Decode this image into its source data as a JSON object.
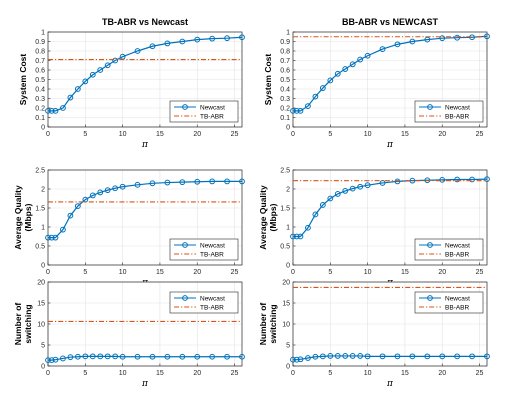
{
  "colors": {
    "newcast": "#0072bd",
    "reference": "#d95319",
    "grid": "#e3e3e3",
    "axis": "#262626"
  },
  "chart_data": [
    {
      "type": "line",
      "title": "TB-ABR vs Newcast",
      "xlabel": "π",
      "ylabel": [
        "System Cost"
      ],
      "xlim": [
        0,
        26
      ],
      "ylim": [
        0,
        1
      ],
      "xticks": [
        "0",
        "5",
        "10",
        "15",
        "20",
        "25"
      ],
      "yticks": [
        "0",
        "0.1",
        "0.2",
        "0.3",
        "0.4",
        "0.5",
        "0.6",
        "0.7",
        "0.8",
        "0.9",
        "1"
      ],
      "grid": true,
      "legend_position": "bottom-right",
      "series": [
        {
          "name": "Newcast",
          "style": "line-circle",
          "x": [
            0,
            0.5,
            1,
            2,
            3,
            4,
            5,
            6,
            7,
            8,
            9,
            10,
            12,
            14,
            16,
            18,
            20,
            22,
            24,
            26
          ],
          "y": [
            0.17,
            0.17,
            0.17,
            0.2,
            0.31,
            0.4,
            0.48,
            0.55,
            0.6,
            0.65,
            0.7,
            0.74,
            0.8,
            0.85,
            0.88,
            0.9,
            0.92,
            0.93,
            0.935,
            0.945
          ]
        },
        {
          "name": "TB-ABR",
          "style": "dash-dot",
          "x": [
            0,
            26
          ],
          "y": [
            0.71,
            0.71
          ]
        }
      ]
    },
    {
      "type": "line",
      "title": "BB-ABR vs NEWCAST",
      "xlabel": "π",
      "ylabel": [
        "System Cost"
      ],
      "xlim": [
        0,
        26
      ],
      "ylim": [
        0,
        1
      ],
      "xticks": [
        "0",
        "5",
        "10",
        "15",
        "20",
        "25"
      ],
      "yticks": [
        "0",
        "0.1",
        "0.2",
        "0.3",
        "0.4",
        "0.5",
        "0.6",
        "0.7",
        "0.8",
        "0.9",
        "1"
      ],
      "grid": true,
      "legend_position": "bottom-right",
      "series": [
        {
          "name": "Newcast",
          "style": "line-circle",
          "x": [
            0,
            0.5,
            1,
            2,
            3,
            4,
            5,
            6,
            7,
            8,
            9,
            10,
            12,
            14,
            16,
            18,
            20,
            22,
            24,
            26
          ],
          "y": [
            0.17,
            0.17,
            0.17,
            0.22,
            0.32,
            0.41,
            0.49,
            0.56,
            0.61,
            0.66,
            0.71,
            0.75,
            0.82,
            0.87,
            0.9,
            0.92,
            0.935,
            0.94,
            0.945,
            0.955
          ]
        },
        {
          "name": "BB-ABR",
          "style": "dash-dot",
          "x": [
            0,
            26
          ],
          "y": [
            0.95,
            0.95
          ]
        }
      ]
    },
    {
      "type": "line",
      "title": "",
      "xlabel": "π",
      "ylabel": [
        "Average Quality",
        "(Mbps)"
      ],
      "xlim": [
        0,
        26
      ],
      "ylim": [
        0,
        2.5
      ],
      "xticks": [
        "0",
        "5",
        "10",
        "15",
        "20",
        "25"
      ],
      "yticks": [
        "0",
        "0.5",
        "1",
        "1.5",
        "2",
        "2.5"
      ],
      "grid": true,
      "legend_position": "bottom-right",
      "series": [
        {
          "name": "Newcast",
          "style": "line-circle",
          "x": [
            0,
            0.5,
            1,
            2,
            3,
            4,
            5,
            6,
            7,
            8,
            9,
            10,
            12,
            14,
            16,
            18,
            20,
            22,
            24,
            26
          ],
          "y": [
            0.72,
            0.72,
            0.72,
            0.93,
            1.3,
            1.55,
            1.72,
            1.83,
            1.91,
            1.97,
            2.02,
            2.06,
            2.11,
            2.15,
            2.17,
            2.18,
            2.19,
            2.2,
            2.2,
            2.2
          ]
        },
        {
          "name": "TB-ABR",
          "style": "dash-dot",
          "x": [
            0,
            26
          ],
          "y": [
            1.66,
            1.66
          ]
        }
      ]
    },
    {
      "type": "line",
      "title": "",
      "xlabel": "π",
      "ylabel": [
        "Average Quality",
        "(Mbps)"
      ],
      "xlim": [
        0,
        26
      ],
      "ylim": [
        0,
        2.5
      ],
      "xticks": [
        "0",
        "5",
        "10",
        "15",
        "20",
        "25"
      ],
      "yticks": [
        "0",
        "0.5",
        "1",
        "1.5",
        "2",
        "2.5"
      ],
      "grid": true,
      "legend_position": "bottom-right",
      "series": [
        {
          "name": "Newcast",
          "style": "line-circle",
          "x": [
            0,
            0.5,
            1,
            2,
            3,
            4,
            5,
            6,
            7,
            8,
            9,
            10,
            12,
            14,
            16,
            18,
            20,
            22,
            24,
            26
          ],
          "y": [
            0.75,
            0.75,
            0.75,
            0.98,
            1.33,
            1.58,
            1.75,
            1.87,
            1.95,
            2.01,
            2.06,
            2.1,
            2.16,
            2.2,
            2.22,
            2.23,
            2.24,
            2.25,
            2.25,
            2.26
          ]
        },
        {
          "name": "BB-ABR",
          "style": "dash-dot",
          "x": [
            0,
            26
          ],
          "y": [
            2.22,
            2.22
          ]
        }
      ]
    },
    {
      "type": "line",
      "title": "",
      "xlabel": "π",
      "ylabel": [
        "Number of",
        "switching"
      ],
      "xlim": [
        0,
        26
      ],
      "ylim": [
        0,
        20
      ],
      "xticks": [
        "0",
        "5",
        "10",
        "15",
        "20",
        "25"
      ],
      "yticks": [
        "0",
        "5",
        "10",
        "15",
        "20"
      ],
      "grid": true,
      "legend_position": "top-right",
      "series": [
        {
          "name": "Newcast",
          "style": "line-circle",
          "x": [
            0,
            0.5,
            1,
            2,
            3,
            4,
            5,
            6,
            7,
            8,
            9,
            10,
            12,
            14,
            16,
            18,
            20,
            22,
            24,
            26
          ],
          "y": [
            1.4,
            1.4,
            1.5,
            1.8,
            2.1,
            2.2,
            2.3,
            2.3,
            2.3,
            2.3,
            2.3,
            2.2,
            2.2,
            2.2,
            2.2,
            2.2,
            2.2,
            2.2,
            2.2,
            2.2
          ]
        },
        {
          "name": "TB-ABR",
          "style": "dash-dot",
          "x": [
            0,
            26
          ],
          "y": [
            10.6,
            10.6
          ]
        }
      ]
    },
    {
      "type": "line",
      "title": "",
      "xlabel": "π",
      "ylabel": [
        "Number of",
        "switching"
      ],
      "xlim": [
        0,
        26
      ],
      "ylim": [
        0,
        20
      ],
      "xticks": [
        "0",
        "5",
        "10",
        "15",
        "20",
        "25"
      ],
      "yticks": [
        "0",
        "5",
        "10",
        "15",
        "20"
      ],
      "grid": true,
      "legend_position": "top-right",
      "series": [
        {
          "name": "Newcast",
          "style": "line-circle",
          "x": [
            0,
            0.5,
            1,
            2,
            3,
            4,
            5,
            6,
            7,
            8,
            9,
            10,
            12,
            14,
            16,
            18,
            20,
            22,
            24,
            26
          ],
          "y": [
            1.5,
            1.5,
            1.6,
            1.9,
            2.2,
            2.3,
            2.4,
            2.4,
            2.4,
            2.4,
            2.4,
            2.3,
            2.3,
            2.3,
            2.3,
            2.3,
            2.3,
            2.3,
            2.3,
            2.3
          ]
        },
        {
          "name": "BB-ABR",
          "style": "dash-dot",
          "x": [
            0,
            26
          ],
          "y": [
            18.7,
            18.7
          ]
        }
      ]
    }
  ]
}
